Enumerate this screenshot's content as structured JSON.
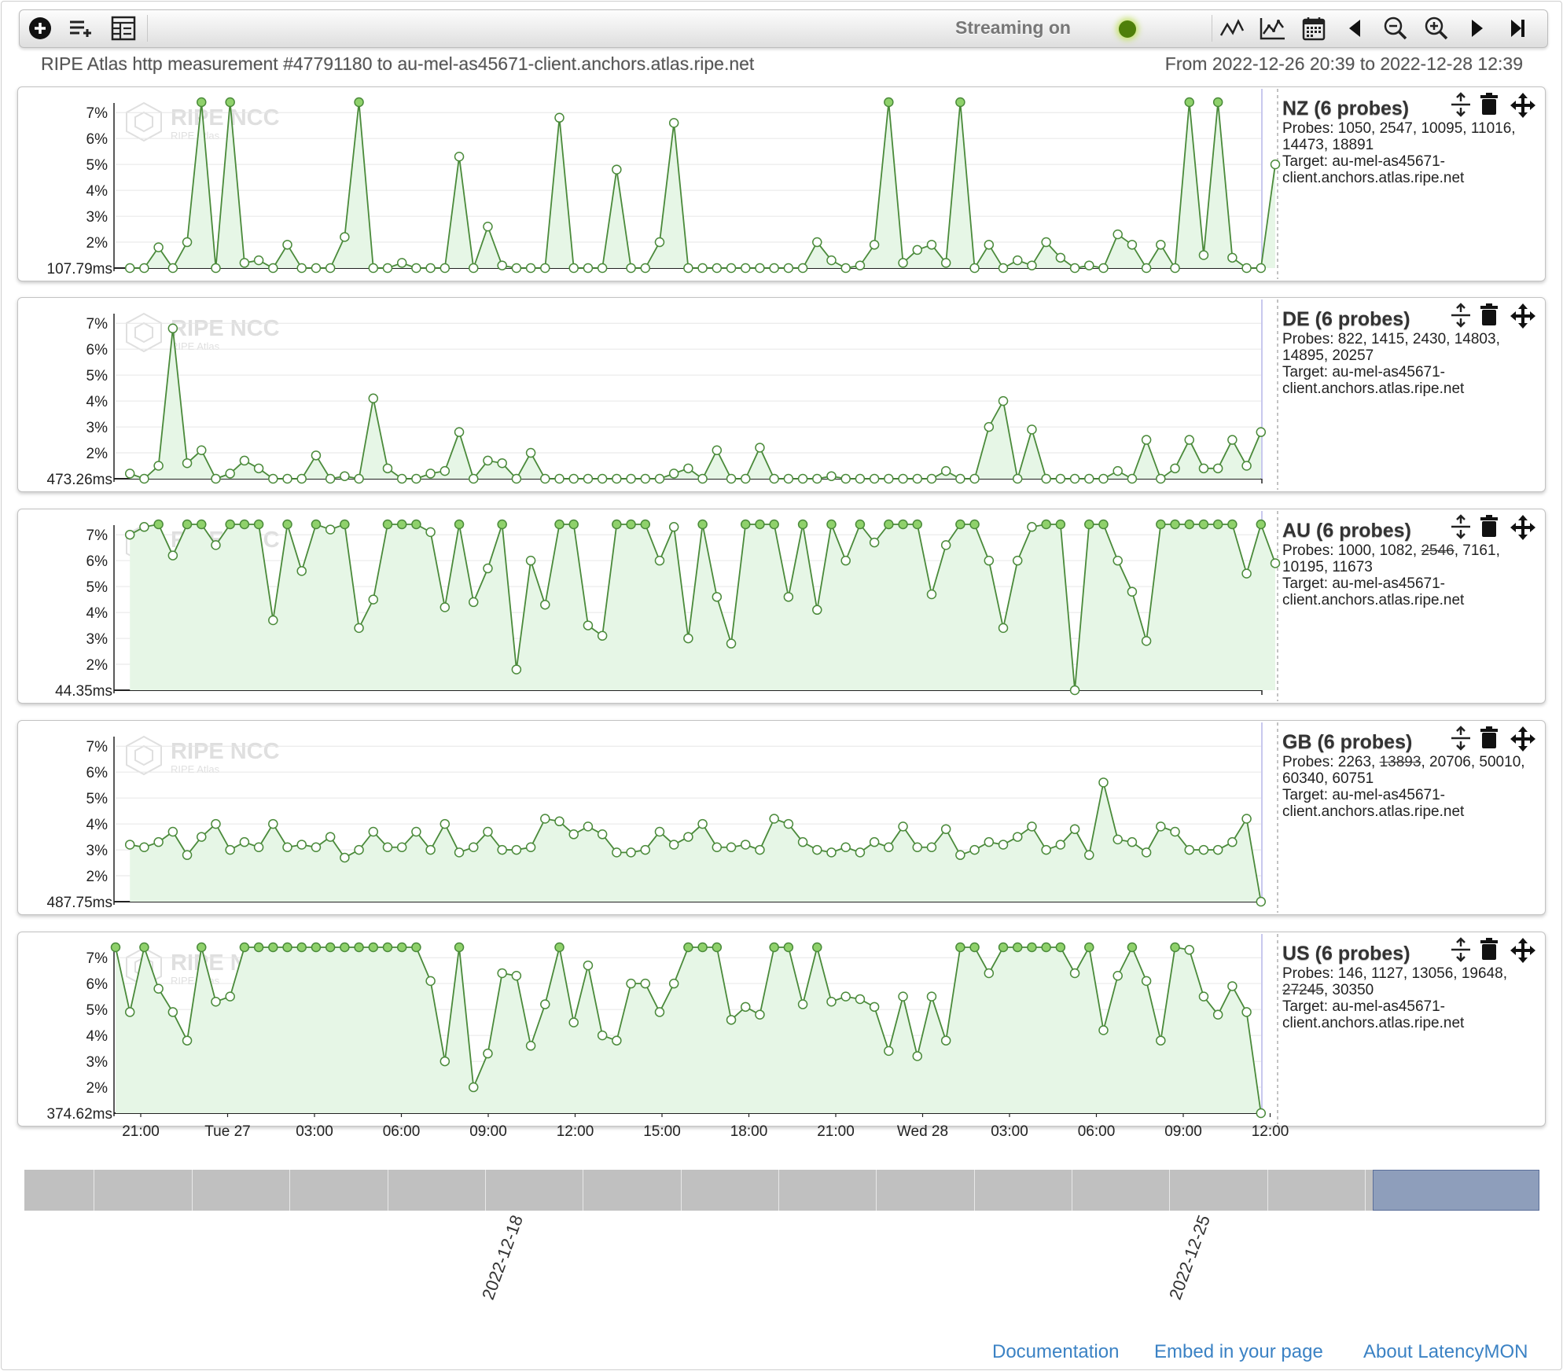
{
  "toolbar": {
    "add_icon": "plus-circle",
    "add_group_icon": "list-plus",
    "table_icon": "grid-list",
    "streaming_label": "Streaming on",
    "streaming_color": "#4f7f0a",
    "view_icons": [
      "line-chart-icon",
      "area-chart-icon",
      "calendar-icon",
      "step-back-icon",
      "zoom-out-icon",
      "zoom-in-icon",
      "step-forward-icon",
      "go-to-end-icon"
    ]
  },
  "header": {
    "subtitle": "RIPE Atlas http measurement #47791180 to au-mel-as45671-client.anchors.atlas.ripe.net",
    "range": "From 2022-12-26 20:39 to 2022-12-28 12:39"
  },
  "watermark": {
    "title": "RIPE NCC",
    "sub": "RIPE Atlas"
  },
  "colors": {
    "line": "#4a8a3a",
    "fill": "#e6f6e6",
    "accent": "#3b82c4"
  },
  "chart_data": {
    "type": "line",
    "x_tick_labels": [
      "21:00",
      "Tue 27",
      "03:00",
      "06:00",
      "09:00",
      "12:00",
      "15:00",
      "18:00",
      "21:00",
      "Wed 28",
      "03:00",
      "06:00",
      "09:00",
      "12:00"
    ],
    "y_tick_labels": [
      "2%",
      "3%",
      "4%",
      "5%",
      "6%",
      "7%"
    ],
    "ylim": [
      1,
      7.4
    ],
    "x_step_minutes": 30,
    "series": [
      {
        "name": "NZ (6 probes)",
        "min_label": "107.79ms",
        "probes_label": "Probes: ",
        "probes": [
          {
            "id": "1050"
          },
          {
            "id": "2547"
          },
          {
            "id": "10095"
          },
          {
            "id": "11016"
          },
          {
            "id": "14473"
          },
          {
            "id": "18891"
          }
        ],
        "target_label": "Target: au-mel-as45671-client.anchors.atlas.ripe.net",
        "start_index": 1,
        "values": [
          1,
          1,
          1.8,
          1,
          2,
          7.4,
          1,
          7.4,
          1.2,
          1.3,
          1,
          1.9,
          1,
          1,
          1,
          2.2,
          7.4,
          1,
          1,
          1.2,
          1,
          1,
          1,
          5.3,
          1,
          2.6,
          1.1,
          1,
          1,
          1,
          6.8,
          1,
          1,
          1,
          4.8,
          1,
          1,
          2,
          6.6,
          1,
          1,
          1,
          1,
          1,
          1,
          1,
          1,
          1,
          2,
          1.3,
          1,
          1.1,
          1.9,
          7.4,
          1.2,
          1.7,
          1.9,
          1.2,
          7.4,
          1,
          1.9,
          1,
          1.3,
          1.1,
          2,
          1.4,
          1,
          1.1,
          1,
          2.3,
          1.9,
          1,
          1.9,
          1,
          7.4,
          1.5,
          7.4,
          1.4,
          1,
          1,
          5
        ]
      },
      {
        "name": "DE (6 probes)",
        "min_label": "473.26ms",
        "probes_label": "Probes: ",
        "probes": [
          {
            "id": "822"
          },
          {
            "id": "1415"
          },
          {
            "id": "2430"
          },
          {
            "id": "14803"
          },
          {
            "id": "14895"
          },
          {
            "id": "20257"
          }
        ],
        "target_label": "Target: au-mel-as45671-client.anchors.atlas.ripe.net",
        "start_index": 1,
        "values": [
          1.2,
          1,
          1.5,
          6.8,
          1.6,
          2.1,
          1,
          1.2,
          1.7,
          1.4,
          1,
          1,
          1,
          1.9,
          1,
          1.1,
          1,
          4.1,
          1.4,
          1,
          1,
          1.2,
          1.3,
          2.8,
          1,
          1.7,
          1.6,
          1,
          2,
          1,
          1,
          1,
          1,
          1,
          1,
          1,
          1,
          1,
          1.2,
          1.4,
          1,
          2.1,
          1,
          1,
          2.2,
          1,
          1,
          1,
          1,
          1.1,
          1,
          1,
          1,
          1,
          1,
          1,
          1,
          1.3,
          1,
          1,
          3,
          4,
          1,
          2.9,
          1,
          1,
          1,
          1,
          1,
          1.3,
          1,
          2.5,
          1,
          1.4,
          2.5,
          1.4,
          1.4,
          2.5,
          1.5,
          2.8
        ]
      },
      {
        "name": "AU (6 probes)",
        "min_label": "44.35ms",
        "probes_label": "Probes: ",
        "probes": [
          {
            "id": "1000"
          },
          {
            "id": "1082"
          },
          {
            "id": "2546",
            "struck": true
          },
          {
            "id": "7161"
          },
          {
            "id": "10195"
          },
          {
            "id": "11673"
          }
        ],
        "target_label": "Target: au-mel-as45671-client.anchors.atlas.ripe.net",
        "start_index": 1,
        "values": [
          7,
          7.3,
          7.4,
          6.2,
          7.4,
          7.4,
          6.6,
          7.4,
          7.4,
          7.4,
          3.7,
          7.4,
          5.6,
          7.4,
          7.2,
          7.4,
          3.4,
          4.5,
          7.4,
          7.4,
          7.4,
          7.1,
          4.2,
          7.4,
          4.4,
          5.7,
          7.4,
          1.8,
          6,
          4.3,
          7.4,
          7.4,
          3.5,
          3.1,
          7.4,
          7.4,
          7.4,
          6,
          7.3,
          3,
          7.4,
          4.6,
          2.8,
          7.4,
          7.4,
          7.4,
          4.6,
          7.4,
          4.1,
          7.4,
          6,
          7.4,
          6.7,
          7.4,
          7.4,
          7.4,
          4.7,
          6.6,
          7.4,
          7.4,
          6,
          3.4,
          6,
          7.3,
          7.4,
          7.4,
          1,
          7.4,
          7.4,
          6,
          4.8,
          2.9,
          7.4,
          7.4,
          7.4,
          7.4,
          7.4,
          7.4,
          5.5,
          7.4,
          5.9
        ]
      },
      {
        "name": "GB (6 probes)",
        "min_label": "487.75ms",
        "probes_label": "Probes: ",
        "probes": [
          {
            "id": "2263"
          },
          {
            "id": "13893",
            "struck": true
          },
          {
            "id": "20706"
          },
          {
            "id": "50010"
          },
          {
            "id": "60340"
          },
          {
            "id": "60751"
          }
        ],
        "target_label": "Target: au-mel-as45671-client.anchors.atlas.ripe.net",
        "start_index": 1,
        "values": [
          3.2,
          3.1,
          3.3,
          3.7,
          2.8,
          3.5,
          4,
          3,
          3.3,
          3.1,
          4,
          3.1,
          3.2,
          3.1,
          3.5,
          2.7,
          3,
          3.7,
          3.1,
          3.1,
          3.7,
          3,
          4,
          2.9,
          3.1,
          3.7,
          3,
          3,
          3.1,
          4.2,
          4.1,
          3.6,
          3.9,
          3.6,
          2.9,
          2.9,
          3,
          3.7,
          3.2,
          3.5,
          4,
          3.1,
          3.1,
          3.2,
          3,
          4.2,
          4,
          3.3,
          3,
          2.9,
          3.1,
          2.9,
          3.3,
          3.1,
          3.9,
          3.1,
          3.1,
          3.8,
          2.8,
          3,
          3.3,
          3.2,
          3.5,
          3.9,
          3,
          3.2,
          3.8,
          2.8,
          5.6,
          3.4,
          3.3,
          2.9,
          3.9,
          3.7,
          3,
          3,
          3,
          3.3,
          4.2,
          1
        ]
      },
      {
        "name": "US (6 probes)",
        "min_label": "374.62ms",
        "probes_label": "Probes: ",
        "probes": [
          {
            "id": "146"
          },
          {
            "id": "1127"
          },
          {
            "id": "13056"
          },
          {
            "id": "19648"
          },
          {
            "id": "27245",
            "struck": true
          },
          {
            "id": "30350"
          }
        ],
        "target_label": "Target: au-mel-as45671-client.anchors.atlas.ripe.net",
        "start_index": 0,
        "values": [
          7.4,
          4.9,
          7.4,
          5.8,
          4.9,
          3.8,
          7.4,
          5.3,
          5.5,
          7.4,
          7.4,
          7.4,
          7.4,
          7.4,
          7.4,
          7.4,
          7.4,
          7.4,
          7.4,
          7.4,
          7.4,
          7.4,
          6.1,
          3,
          7.4,
          2,
          3.3,
          6.4,
          6.3,
          3.6,
          5.2,
          7.4,
          4.5,
          6.7,
          4,
          3.8,
          6,
          6,
          4.9,
          6,
          7.4,
          7.4,
          7.4,
          4.6,
          5.1,
          4.8,
          7.4,
          7.4,
          5.2,
          7.4,
          5.3,
          5.5,
          5.4,
          5.1,
          3.4,
          5.5,
          3.2,
          5.5,
          3.8,
          7.4,
          7.4,
          6.4,
          7.4,
          7.4,
          7.4,
          7.4,
          7.4,
          6.4,
          7.4,
          4.2,
          6.3,
          7.4,
          6.1,
          3.8,
          7.4,
          7.3,
          5.5,
          4.8,
          5.9,
          4.9,
          1
        ]
      }
    ]
  },
  "timeline": {
    "labels": [
      "2022-12-18",
      "2022-12-25"
    ]
  },
  "footer": {
    "docs": "Documentation",
    "embed": "Embed in your page",
    "about": "About LatencyMON"
  }
}
